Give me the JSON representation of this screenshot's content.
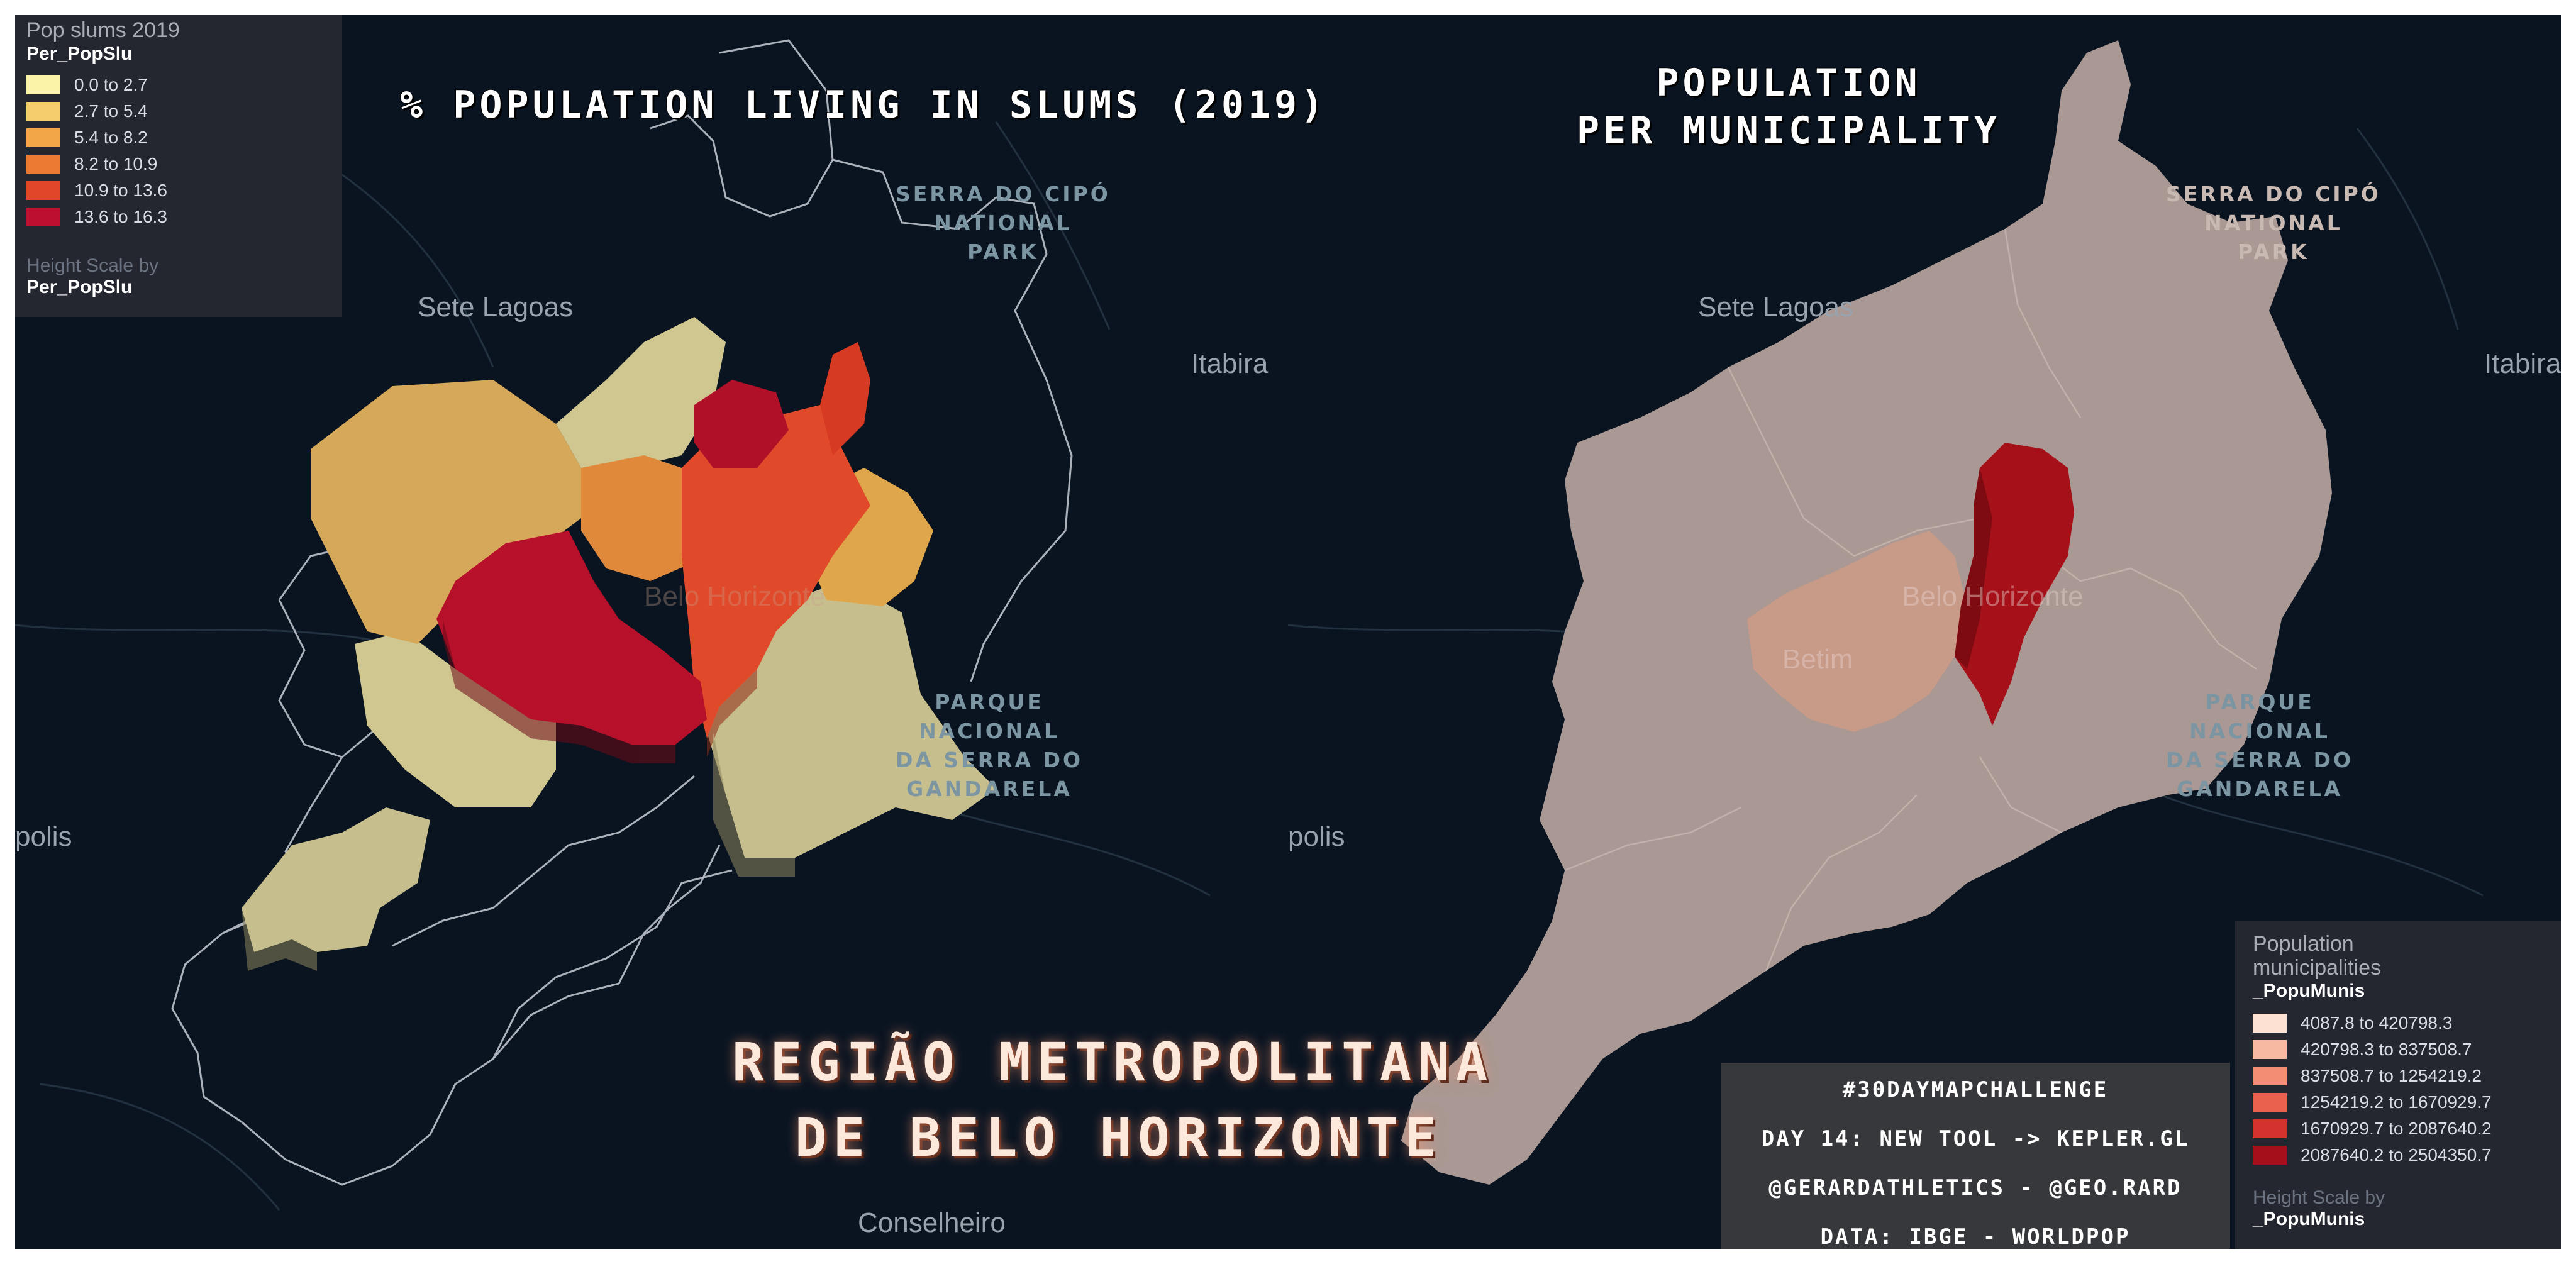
{
  "left_map": {
    "title": "% POPULATION LIVING IN SLUMS (2019)",
    "legend": {
      "layer_name": "Pop slums 2019",
      "field": "Per_PopSlu",
      "items": [
        {
          "label": "0.0 to 2.7",
          "color": "#fbf3a8"
        },
        {
          "label": "2.7 to 5.4",
          "color": "#f6cd6c"
        },
        {
          "label": "5.4 to 8.2",
          "color": "#f2a647"
        },
        {
          "label": "8.2 to 10.9",
          "color": "#ed7a33"
        },
        {
          "label": "10.9 to 13.6",
          "color": "#e1452a"
        },
        {
          "label": "13.6 to 16.3",
          "color": "#bd0f2e"
        }
      ],
      "height_label": "Height Scale by",
      "height_field": "Per_PopSlu"
    }
  },
  "right_map": {
    "title_line1": "POPULATION",
    "title_line2": "PER MUNICIPALITY",
    "legend": {
      "layer_name_line1": "Population",
      "layer_name_line2": "municipalities",
      "field": "_PopuMunis",
      "items": [
        {
          "label": "4087.8 to 420798.3",
          "color": "#fde2d4"
        },
        {
          "label": "420798.3 to 837508.7",
          "color": "#f8b9a1"
        },
        {
          "label": "837508.7 to 1254219.2",
          "color": "#f38e74"
        },
        {
          "label": "1254219.2 to 1670929.7",
          "color": "#ea614d"
        },
        {
          "label": "1670929.7 to 2087640.2",
          "color": "#d3322f"
        },
        {
          "label": "2087640.2 to 2504350.7",
          "color": "#a50f1c"
        }
      ],
      "height_label": "Height Scale by",
      "height_field": "_PopuMunis"
    }
  },
  "labels": {
    "sete_lagoas": "Sete Lagoas",
    "itabira": "Itabira",
    "polis": "polis",
    "conselheiro": "Conselheiro",
    "belo_horizonte": "Belo Horizonte",
    "betim": "Betim",
    "serra_cipo": "SERRA DO CIPÓ\nNATIONAL\nPARK",
    "gandarela": "PARQUE\nNACIONAL\nDA SERRA DO\nGANDARELA"
  },
  "main_title": {
    "line1": "REGIÃO METROPOLITANA",
    "line2": "DE BELO HORIZONTE"
  },
  "credits": {
    "line1": "#30DAYMAPCHALLENGE",
    "line2": "DAY 14: NEW TOOL -> KEPLER.GL",
    "line3": "@GERARDATHLETICS - @GEO.RARD",
    "line4": "DATA: IBGE - WORLDPOP"
  },
  "colors": {
    "background": "#0a1421",
    "border_lines": "#c9ced6",
    "right_base_fill": "#a99893"
  }
}
